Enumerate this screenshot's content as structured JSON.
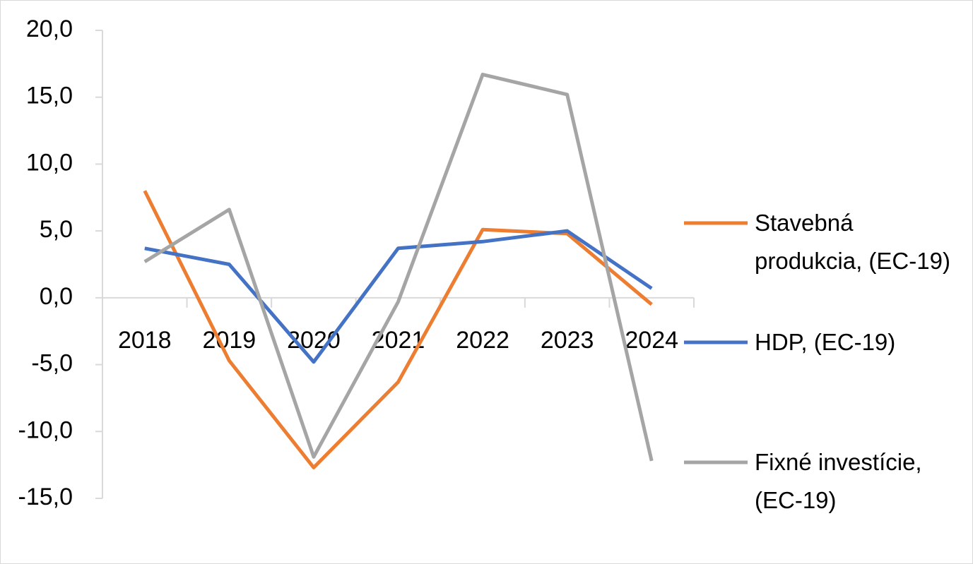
{
  "chart_data": {
    "type": "line",
    "categories": [
      "2018",
      "2019",
      "2020",
      "2021",
      "2022",
      "2023",
      "2024"
    ],
    "series": [
      {
        "name": "Stavebná produkcia, (EC-19)",
        "color": "#ed7d31",
        "values": [
          8.0,
          -4.7,
          -12.7,
          -6.3,
          5.1,
          4.8,
          -0.5
        ]
      },
      {
        "name": "HDP, (EC-19)",
        "color": "#4472c4",
        "values": [
          3.7,
          2.5,
          -4.8,
          3.7,
          4.2,
          5.0,
          0.7
        ]
      },
      {
        "name": "Fixné investície, (EC-19)",
        "color": "#a5a5a5",
        "values": [
          2.7,
          6.6,
          -11.9,
          -0.3,
          16.7,
          15.2,
          -12.2
        ]
      }
    ],
    "ylim": [
      -15,
      20
    ],
    "yticks": [
      {
        "value": -15,
        "label": "-15,0"
      },
      {
        "value": -10,
        "label": "-10,0"
      },
      {
        "value": -5,
        "label": "-5,0"
      },
      {
        "value": 0,
        "label": "0,0"
      },
      {
        "value": 5,
        "label": "5,0"
      },
      {
        "value": 10,
        "label": "10,0"
      },
      {
        "value": 15,
        "label": "15,0"
      },
      {
        "value": 20,
        "label": "20,0"
      }
    ],
    "grid": false,
    "legend": "right"
  }
}
